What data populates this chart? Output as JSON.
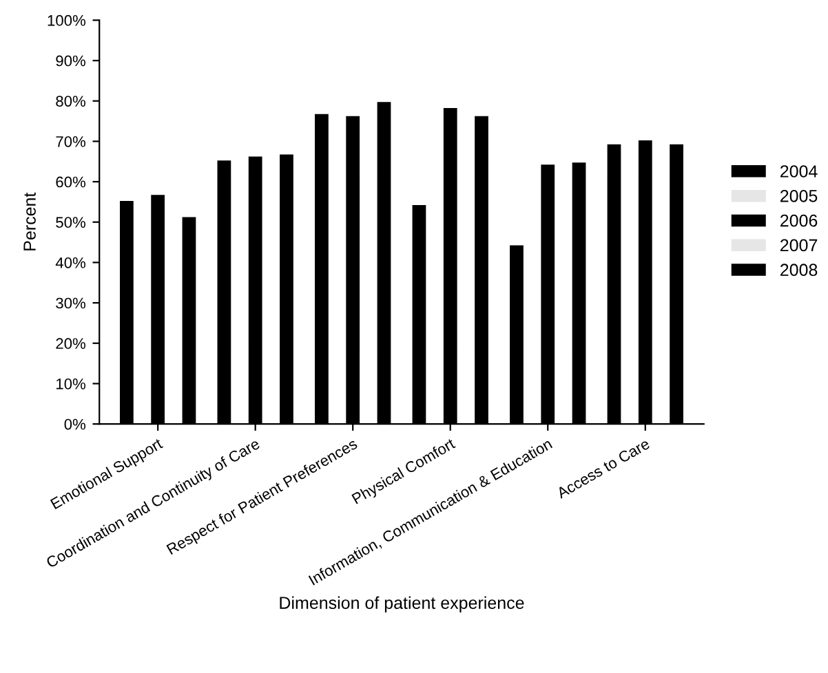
{
  "chart_data": {
    "type": "bar",
    "xlabel": "Dimension of patient experience",
    "ylabel": "Percent",
    "categories": [
      "Emotional Support",
      "Coordination and Continuity of Care",
      "Respect for Patient Preferences",
      "Physical Comfort",
      "Information, Communication & Education",
      "Access to Care"
    ],
    "series": [
      {
        "name": "2004",
        "color": "#000000",
        "values": [
          55,
          65,
          76.5,
          54,
          44,
          69
        ]
      },
      {
        "name": "2005",
        "color": "#e6e6e6",
        "values": [
          null,
          null,
          null,
          null,
          null,
          null
        ]
      },
      {
        "name": "2006",
        "color": "#000000",
        "values": [
          56.5,
          66,
          76,
          78,
          64,
          70
        ]
      },
      {
        "name": "2007",
        "color": "#e6e6e6",
        "values": [
          null,
          null,
          null,
          null,
          null,
          null
        ]
      },
      {
        "name": "2008",
        "color": "#000000",
        "values": [
          51,
          66.5,
          79.5,
          76,
          64.5,
          69
        ]
      }
    ],
    "ylim": [
      0,
      100
    ],
    "yticks": [
      {
        "value": 0,
        "label": "0%"
      },
      {
        "value": 10,
        "label": "10%"
      },
      {
        "value": 20,
        "label": "20%"
      },
      {
        "value": 30,
        "label": "30%"
      },
      {
        "value": 40,
        "label": "40%"
      },
      {
        "value": 50,
        "label": "50%"
      },
      {
        "value": 60,
        "label": "60%"
      },
      {
        "value": 70,
        "label": "70%"
      },
      {
        "value": 80,
        "label": "80%"
      },
      {
        "value": 90,
        "label": "90%"
      },
      {
        "value": 100,
        "label": "100%"
      }
    ],
    "grid": false,
    "legend": "right"
  }
}
